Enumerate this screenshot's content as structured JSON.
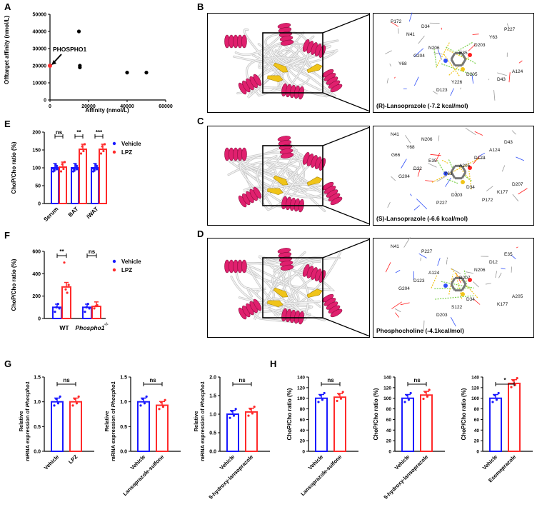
{
  "panels": {
    "A": {
      "label": "A",
      "ylabel": "Offtarget affinity (nmol/L)",
      "xlabel": "Affinity (nmol/L)",
      "xticks": [
        "0",
        "20000",
        "40000",
        "60000"
      ],
      "yticks": [
        "0",
        "10000",
        "20000",
        "30000",
        "40000",
        "50000"
      ],
      "annotation": "PHOSPHO1"
    },
    "B": {
      "label": "B",
      "caption": "(R)-Lansoprazole (-7.2 kcal/mol)",
      "residues": [
        "P172",
        "N206",
        "D205",
        "P227",
        "G204",
        "Y226",
        "Y63",
        "Y68",
        "D123",
        "D203",
        "A124",
        "D34",
        "E35",
        "D43",
        "N41"
      ]
    },
    "C": {
      "label": "C",
      "caption": "(S)-Lansoprazole (-6.6 kcal/mol)",
      "residues": [
        "N41",
        "E35",
        "D34",
        "D43",
        "D32",
        "D203",
        "A124",
        "G204",
        "P227",
        "D123",
        "D207",
        "N206",
        "A205",
        "K177",
        "Y68",
        "Y63",
        "P172",
        "G66"
      ]
    },
    "D": {
      "label": "D",
      "caption": "Phosphocholine (-4.1kcal/mol)",
      "residues": [
        "N41",
        "A124",
        "D34",
        "E35",
        "D123",
        "S122",
        "D12",
        "G204",
        "D203",
        "N206",
        "A205",
        "P227",
        "D207",
        "K177"
      ]
    },
    "E": {
      "label": "E",
      "ylabel": "ChoP/Cho ratio (%)",
      "categories": [
        "Serum",
        "BAT",
        "iWAT"
      ],
      "sig": [
        "ns",
        "**",
        "***"
      ],
      "yticks": [
        "0",
        "50",
        "100",
        "150",
        "200"
      ],
      "legend": [
        "Vehicle",
        "LPZ"
      ]
    },
    "F": {
      "label": "F",
      "ylabel": "ChoP/Cho ratio (%)",
      "categories": [
        "WT",
        "Phospho1"
      ],
      "cat2_sup": "-/-",
      "sig": [
        "**",
        "ns"
      ],
      "yticks": [
        "0",
        "200",
        "400",
        "600"
      ],
      "legend": [
        "Vehicle",
        "LPZ"
      ]
    },
    "G": {
      "label": "G",
      "ylabel_line1": "Relative",
      "ylabel_line2_prefix": "mRNA expression of ",
      "ylabel_gene": "Phospho1",
      "sub1": {
        "categories": [
          "Vehicle",
          "LPZ"
        ],
        "sig": "ns",
        "yticks": [
          "0.0",
          "0.5",
          "1.0",
          "1.5"
        ]
      },
      "sub2": {
        "categories": [
          "Vehicle",
          "Lansoprazole-sulfone"
        ],
        "sig": "ns",
        "yticks": [
          "0.0",
          "0.5",
          "1.0",
          "1.5"
        ]
      },
      "sub3": {
        "categories": [
          "Vehicle",
          "5-hydroxy-lansoprazole"
        ],
        "sig": "ns",
        "yticks": [
          "0.0",
          "0.5",
          "1.0",
          "1.5",
          "2.0"
        ]
      }
    },
    "H": {
      "label": "H",
      "ylabel": "ChoP/Cho ratio (%)",
      "sub1": {
        "categories": [
          "Vehicle",
          "Lansoprazole-sulfone"
        ],
        "sig": "ns",
        "yticks": [
          "0",
          "20",
          "40",
          "60",
          "80",
          "100",
          "120",
          "140"
        ]
      },
      "sub2": {
        "categories": [
          "Vehicle",
          "5-hydroxy-lansoprazole"
        ],
        "sig": "ns",
        "yticks": [
          "0",
          "20",
          "40",
          "60",
          "80",
          "100",
          "120",
          "140"
        ]
      },
      "sub3": {
        "categories": [
          "Vehicle",
          "Esomeprazole"
        ],
        "sig": "*",
        "yticks": [
          "0",
          "20",
          "40",
          "60",
          "80",
          "100",
          "120",
          "140"
        ]
      }
    }
  },
  "colors": {
    "vehicle": "#1a1aff",
    "lpz": "#ff2a2a",
    "ribbon": "#e0206e",
    "sheet": "#f0c419"
  },
  "chart_data": [
    {
      "id": "A",
      "type": "scatter",
      "title": "",
      "xlabel": "Affinity (nmol/L)",
      "ylabel": "Offtarget affinity (nmol/L)",
      "xlim": [
        0,
        60000
      ],
      "ylim": [
        0,
        50000
      ],
      "points": [
        [
          0,
          20000
        ],
        [
          15000,
          40000
        ],
        [
          15500,
          20000
        ],
        [
          15500,
          19000
        ],
        [
          40000,
          16000
        ],
        [
          50000,
          16000
        ]
      ],
      "highlight": {
        "label": "PHOSPHO1",
        "x": 0,
        "y": 20000
      }
    },
    {
      "id": "E",
      "type": "bar",
      "categories": [
        "Serum",
        "BAT",
        "iWAT"
      ],
      "ylim": [
        0,
        200
      ],
      "series": [
        {
          "name": "Vehicle",
          "values": [
            100,
            100,
            100
          ]
        },
        {
          "name": "LPZ",
          "values": [
            102,
            152,
            152
          ]
        }
      ]
    },
    {
      "id": "F",
      "type": "bar",
      "categories": [
        "WT",
        "Phospho1-/-"
      ],
      "ylim": [
        0,
        600
      ],
      "series": [
        {
          "name": "Vehicle",
          "values": [
            100,
            100
          ]
        },
        {
          "name": "LPZ",
          "values": [
            282,
            108
          ]
        }
      ]
    },
    {
      "id": "G1",
      "type": "bar",
      "categories": [
        "Vehicle",
        "LPZ"
      ],
      "ylim": [
        0,
        1.5
      ],
      "values": [
        1.0,
        1.0
      ]
    },
    {
      "id": "G2",
      "type": "bar",
      "categories": [
        "Vehicle",
        "Lansoprazole-sulfone"
      ],
      "ylim": [
        0,
        1.5
      ],
      "values": [
        1.0,
        0.93
      ]
    },
    {
      "id": "G3",
      "type": "bar",
      "categories": [
        "Vehicle",
        "5-hydroxy-lansoprazole"
      ],
      "ylim": [
        0,
        2.0
      ],
      "values": [
        1.0,
        1.06
      ]
    },
    {
      "id": "H1",
      "type": "bar",
      "categories": [
        "Vehicle",
        "Lansoprazole-sulfone"
      ],
      "ylim": [
        0,
        140
      ],
      "values": [
        100,
        102
      ]
    },
    {
      "id": "H2",
      "type": "bar",
      "categories": [
        "Vehicle",
        "5-hydroxy-lansoprazole"
      ],
      "ylim": [
        0,
        140
      ],
      "values": [
        100,
        106
      ]
    },
    {
      "id": "H3",
      "type": "bar",
      "categories": [
        "Vehicle",
        "Esomeprazole"
      ],
      "ylim": [
        0,
        140
      ],
      "values": [
        100,
        128
      ]
    }
  ]
}
